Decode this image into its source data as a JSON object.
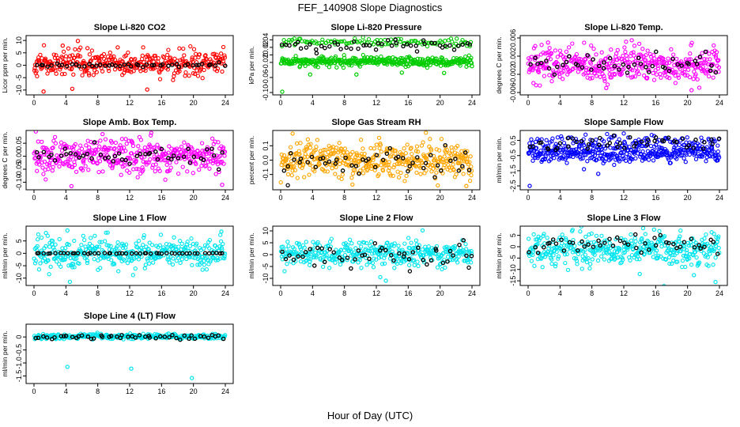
{
  "figure": {
    "title": "FEF_140908  Slope Diagnostics",
    "xlabel": "Hour of Day (UTC)"
  },
  "chart_data": [
    {
      "type": "scatter",
      "title": "Slope Li-820 CO2",
      "ylabel": "Licor ppm per min.",
      "xlim": [
        0,
        24
      ],
      "ylim": [
        -11,
        11
      ],
      "xticks": [
        "0",
        "4",
        "8",
        "12",
        "16",
        "20",
        "24"
      ],
      "yticks": [
        {
          "v": 10,
          "label": "10"
        },
        {
          "v": 5,
          "label": "5"
        },
        {
          "v": 0,
          "label": "0"
        },
        {
          "v": -5,
          "label": "-5"
        },
        {
          "v": -10,
          "label": "-10"
        }
      ],
      "series": [
        {
          "color": "#ff0000",
          "center": 0.6,
          "spread": 2.5,
          "n": 380,
          "outliers": [
            [
              5.5,
              9.8
            ],
            [
              1.2,
              -10.6
            ],
            [
              4.8,
              -9.5
            ],
            [
              14.2,
              -9.8
            ],
            [
              3.6,
              7.9
            ],
            [
              10.5,
              7.2
            ],
            [
              6.7,
              6.9
            ],
            [
              23.4,
              2.5
            ]
          ]
        },
        {
          "color": "#000000",
          "center": 0.0,
          "spread": 0.35,
          "n": 48
        }
      ]
    },
    {
      "type": "scatter",
      "title": "Slope Li-820 Pressure",
      "ylabel": "kPa per min.",
      "xlim": [
        0,
        24
      ],
      "ylim": [
        -0.1,
        0.045
      ],
      "xticks": [
        "0",
        "4",
        "8",
        "12",
        "16",
        "20",
        "24"
      ],
      "yticks": [
        {
          "v": 0.04,
          "label": "0.04"
        },
        {
          "v": 0.02,
          "label": "0.02"
        },
        {
          "v": 0,
          "label": "0"
        },
        {
          "v": -0.02,
          "label": "-0.02"
        },
        {
          "v": -0.06,
          "label": "-0.06"
        },
        {
          "v": -0.1,
          "label": "-0.10"
        }
      ],
      "series": [
        {
          "color": "#00cc00",
          "center": -0.018,
          "spread": 0.006,
          "n": 380,
          "outliers": [
            [
              0.2,
              -0.098
            ],
            [
              3.7,
              -0.052
            ],
            [
              9.5,
              -0.052
            ],
            [
              15.2,
              -0.047
            ],
            [
              20.5,
              -0.048
            ],
            [
              24.0,
              -0.03
            ]
          ]
        },
        {
          "color": "#00cc00",
          "center": 0.033,
          "spread": 0.005,
          "n": 110
        },
        {
          "color": "#000000",
          "center": 0.025,
          "spread": 0.008,
          "n": 48
        }
      ]
    },
    {
      "type": "scatter",
      "title": "Slope Li-820 Temp.",
      "ylabel": "degrees C per min.",
      "xlim": [
        0,
        24
      ],
      "ylim": [
        -0.006,
        0.006
      ],
      "xticks": [
        "0",
        "4",
        "8",
        "12",
        "16",
        "20",
        "24"
      ],
      "yticks": [
        {
          "v": 0.006,
          "label": "0.006"
        },
        {
          "v": 0.002,
          "label": "0.002"
        },
        {
          "v": -0.002,
          "label": "-0.002"
        },
        {
          "v": -0.006,
          "label": "-0.006"
        }
      ],
      "series": [
        {
          "color": "#ff00ff",
          "center": 0.0002,
          "spread": 0.0019,
          "n": 420,
          "outliers": [
            [
              13.0,
              0.0055
            ],
            [
              20.5,
              -0.0055
            ],
            [
              2.5,
              0.005
            ],
            [
              9.8,
              -0.005
            ]
          ]
        },
        {
          "color": "#000000",
          "center": 0.0,
          "spread": 0.0012,
          "n": 48
        }
      ]
    },
    {
      "type": "scatter",
      "title": "Slope Amb. Box Temp.",
      "ylabel": "degrees C per min.",
      "xlim": [
        0,
        24
      ],
      "ylim": [
        -0.12,
        0.09
      ],
      "xticks": [
        "0",
        "4",
        "8",
        "12",
        "16",
        "20",
        "24"
      ],
      "yticks": [
        {
          "v": 0.05,
          "label": "0.05"
        },
        {
          "v": 0,
          "label": "0.00"
        },
        {
          "v": -0.05,
          "label": "-0.05"
        },
        {
          "v": -0.1,
          "label": "-0.10"
        }
      ],
      "series": [
        {
          "color": "#ff00ff",
          "center": 0.0,
          "spread": 0.032,
          "n": 420,
          "outliers": [
            [
              4.7,
              -0.115
            ],
            [
              8.6,
              0.085
            ],
            [
              23.6,
              -0.11
            ]
          ]
        },
        {
          "color": "#000000",
          "center": 0.0,
          "spread": 0.015,
          "n": 48
        }
      ]
    },
    {
      "type": "scatter",
      "title": "Slope Gas Stream RH",
      "ylabel": "percent per min.",
      "xlim": [
        0,
        24
      ],
      "ylim": [
        -0.19,
        0.19
      ],
      "xticks": [
        "0",
        "4",
        "8",
        "12",
        "16",
        "20",
        "24"
      ],
      "yticks": [
        {
          "v": 0.1,
          "label": "0.1"
        },
        {
          "v": 0,
          "label": "0.0"
        },
        {
          "v": -0.1,
          "label": "-0.1"
        }
      ],
      "series": [
        {
          "color": "#ffa500",
          "center": 0.0,
          "spread": 0.06,
          "n": 430,
          "outliers": [
            [
              1.5,
              0.185
            ],
            [
              9.0,
              -0.17
            ],
            [
              23.3,
              -0.18
            ]
          ]
        },
        {
          "color": "#000000",
          "center": 0.0,
          "spread": 0.05,
          "n": 48,
          "outliers": [
            [
              0.9,
              -0.175
            ]
          ]
        }
      ]
    },
    {
      "type": "scatter",
      "title": "Slope Sample Flow",
      "ylabel": "ml/min per min.",
      "xlim": [
        0,
        24
      ],
      "ylim": [
        -2.6,
        1.0
      ],
      "xticks": [
        "0",
        "4",
        "8",
        "12",
        "16",
        "20",
        "24"
      ],
      "yticks": [
        {
          "v": 0.5,
          "label": "0.5"
        },
        {
          "v": -0.5,
          "label": "-0.5"
        },
        {
          "v": -1.5,
          "label": "-1.5"
        },
        {
          "v": -2.5,
          "label": "-2.5"
        }
      ],
      "series": [
        {
          "color": "#0000ff",
          "center": -0.35,
          "spread": 0.28,
          "n": 360,
          "outliers": [
            [
              0.2,
              -2.5
            ],
            [
              8.8,
              -1.7
            ],
            [
              7.0,
              -1.4
            ]
          ]
        },
        {
          "color": "#0000ff",
          "center": 0.45,
          "spread": 0.22,
          "n": 110
        },
        {
          "color": "#000000",
          "center": 0.3,
          "spread": 0.2,
          "n": 48
        }
      ]
    },
    {
      "type": "scatter",
      "title": "Slope Line 1 Flow",
      "ylabel": "ml/min per min.",
      "xlim": [
        0,
        24
      ],
      "ylim": [
        -12,
        10
      ],
      "xticks": [
        "0",
        "4",
        "8",
        "12",
        "16",
        "20",
        "24"
      ],
      "yticks": [
        {
          "v": 5,
          "label": "5"
        },
        {
          "v": 0,
          "label": "0"
        },
        {
          "v": -5,
          "label": "-5"
        },
        {
          "v": -10,
          "label": "-10"
        }
      ],
      "series": [
        {
          "color": "#00e5ee",
          "center": 0.0,
          "spread": 3.0,
          "n": 380,
          "outliers": [
            [
              4.5,
              -11.5
            ],
            [
              4.2,
              9.2
            ],
            [
              23.5,
              8.8
            ],
            [
              1.5,
              8.2
            ]
          ]
        },
        {
          "color": "#000000",
          "center": 0.0,
          "spread": 0.08,
          "n": 48
        }
      ]
    },
    {
      "type": "scatter",
      "title": "Slope Line 2 Flow",
      "ylabel": "ml/min per min.",
      "xlim": [
        0,
        24
      ],
      "ylim": [
        -12,
        11
      ],
      "xticks": [
        "0",
        "4",
        "8",
        "12",
        "16",
        "20",
        "24"
      ],
      "yticks": [
        {
          "v": 10,
          "label": "10"
        },
        {
          "v": 5,
          "label": "5"
        },
        {
          "v": 0,
          "label": "0"
        },
        {
          "v": -5,
          "label": "-5"
        },
        {
          "v": -10,
          "label": "-10"
        }
      ],
      "series": [
        {
          "color": "#00e5ee",
          "center": 0.3,
          "spread": 2.6,
          "n": 380,
          "outliers": [
            [
              13.2,
              -11.0
            ],
            [
              17.8,
              10.2
            ],
            [
              12.5,
              -9.5
            ]
          ]
        },
        {
          "color": "#000000",
          "center": 0.3,
          "spread": 2.4,
          "n": 48,
          "outliers": [
            [
              23.6,
              -5.5
            ],
            [
              16.2,
              -7.0
            ]
          ]
        }
      ]
    },
    {
      "type": "scatter",
      "title": "Slope Line 3 Flow",
      "ylabel": "ml/min per min.",
      "xlim": [
        0,
        24
      ],
      "ylim": [
        -16,
        8
      ],
      "xticks": [
        "0",
        "4",
        "8",
        "12",
        "16",
        "20",
        "24"
      ],
      "yticks": [
        {
          "v": 5,
          "label": "5"
        },
        {
          "v": 0,
          "label": "0"
        },
        {
          "v": -5,
          "label": "-5"
        },
        {
          "v": -10,
          "label": "-10"
        },
        {
          "v": -15,
          "label": "-15"
        }
      ],
      "series": [
        {
          "color": "#00e5ee",
          "center": -1.0,
          "spread": 3.4,
          "n": 420,
          "outliers": [
            [
              23.5,
              -15.5
            ],
            [
              20.8,
              -12.5
            ],
            [
              14.0,
              -12.0
            ],
            [
              15.8,
              7.5
            ]
          ]
        },
        {
          "color": "#000000",
          "center": 1.0,
          "spread": 2.0,
          "n": 48
        }
      ]
    },
    {
      "type": "scatter",
      "title": "Slope Line 4 (LT) Flow",
      "ylabel": "ml/min per min.",
      "xlim": [
        0,
        24
      ],
      "ylim": [
        -1.7,
        0.4
      ],
      "xticks": [
        "0",
        "4",
        "8",
        "12",
        "16",
        "20",
        "24"
      ],
      "yticks": [
        {
          "v": 0,
          "label": "0"
        },
        {
          "v": -0.5,
          "label": "-0.5"
        },
        {
          "v": -1.0,
          "label": "-1.0"
        },
        {
          "v": -1.5,
          "label": "-1.5"
        }
      ],
      "series": [
        {
          "color": "#00e5ee",
          "center": 0.02,
          "spread": 0.05,
          "n": 300,
          "outliers": [
            [
              4.2,
              -1.15
            ],
            [
              12.2,
              -1.22
            ],
            [
              19.8,
              -1.58
            ]
          ]
        },
        {
          "color": "#000000",
          "center": 0.0,
          "spread": 0.04,
          "n": 48
        }
      ]
    }
  ]
}
